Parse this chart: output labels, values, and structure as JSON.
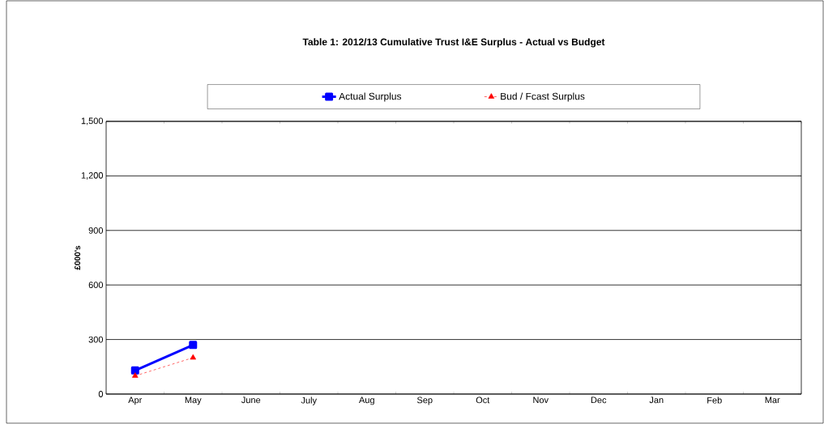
{
  "chart_data": {
    "type": "line",
    "title": "Table 1: 2012/13 Cumulative Trust I&E Surplus - Actual vs Budget",
    "ylabel": "£000's",
    "categories": [
      "Apr",
      "May",
      "June",
      "July",
      "Aug",
      "Sep",
      "Oct",
      "Nov",
      "Dec",
      "Jan",
      "Feb",
      "Mar"
    ],
    "series": [
      {
        "name": "Actual Surplus",
        "color": "#0000ff",
        "marker": "square",
        "line_style": "solid",
        "values": [
          130,
          270,
          null,
          null,
          null,
          null,
          null,
          null,
          null,
          null,
          null,
          null
        ]
      },
      {
        "name": "Bud / Fcast Surplus",
        "color": "#ff0000",
        "marker": "triangle",
        "line_style": "dashed",
        "values": [
          100,
          200,
          null,
          null,
          null,
          null,
          null,
          null,
          null,
          null,
          null,
          null
        ]
      }
    ],
    "ylim": [
      0,
      1500
    ],
    "yticks": [
      {
        "value": 0,
        "label": "0"
      },
      {
        "value": 300,
        "label": "300"
      },
      {
        "value": 600,
        "label": "600"
      },
      {
        "value": 900,
        "label": "900"
      },
      {
        "value": 1200,
        "label": "1,200"
      },
      {
        "value": 1500,
        "label": "1,500"
      }
    ],
    "grid": "y",
    "legend": "top"
  }
}
